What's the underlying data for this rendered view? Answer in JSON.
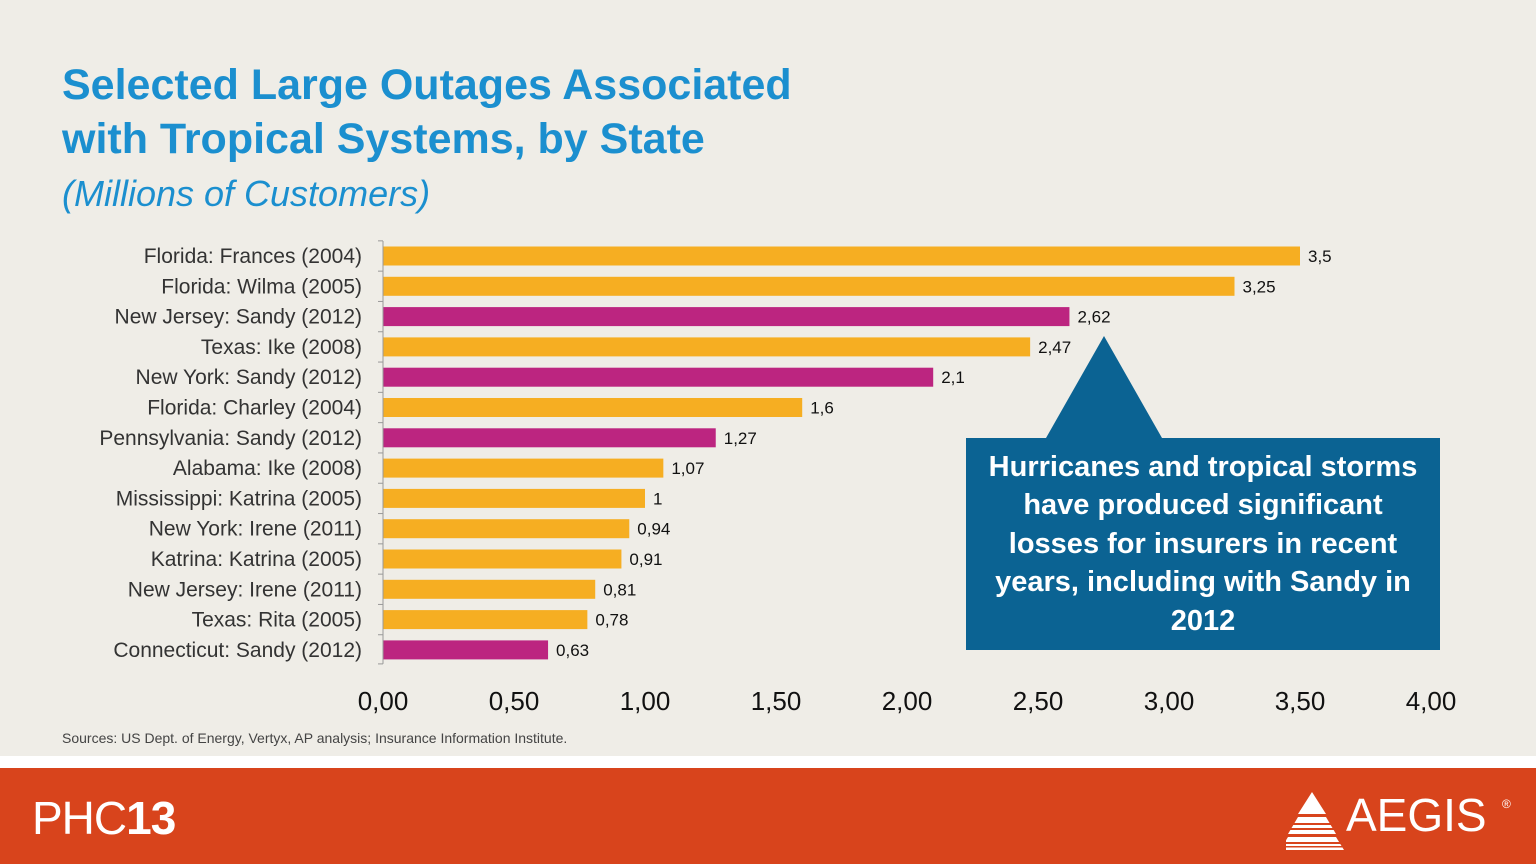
{
  "slide": {
    "title_line1": "Selected Large Outages Associated",
    "title_line2": "with Tropical Systems, by State",
    "subtitle": "(Millions of Customers)",
    "callout": "Hurricanes and tropical storms have produced significant losses for insurers in recent years, including with Sandy in 2012",
    "sources": "Sources:  US Dept. of Energy, Vertyx, AP analysis; Insurance Information Institute.",
    "footer": {
      "brand_prefix": "PHC",
      "brand_number": "13",
      "partner": "AEGIS",
      "registered_mark": "®"
    }
  },
  "colors": {
    "title": "#1b8fcf",
    "bar_default": "#f6ae22",
    "bar_sandy": "#bc2580",
    "callout_bg": "#0b6393",
    "footer_bg": "#d8441c",
    "background": "#efede7"
  },
  "chart_data": {
    "type": "bar",
    "orientation": "horizontal",
    "categories": [
      "Florida: Frances (2004)",
      "Florida: Wilma (2005)",
      "New Jersey: Sandy (2012)",
      "Texas: Ike (2008)",
      "New York: Sandy (2012)",
      "Florida: Charley (2004)",
      "Pennsylvania: Sandy (2012)",
      "Alabama: Ike (2008)",
      "Mississippi: Katrina (2005)",
      "New York: Irene (2011)",
      "Katrina: Katrina (2005)",
      "New Jersey: Irene (2011)",
      "Texas: Rita (2005)",
      "Connecticut: Sandy (2012)"
    ],
    "values": [
      3.5,
      3.25,
      2.62,
      2.47,
      2.1,
      1.6,
      1.27,
      1.07,
      1,
      0.94,
      0.91,
      0.81,
      0.78,
      0.63
    ],
    "value_labels": [
      "3,5",
      "3,25",
      "2,62",
      "2,47",
      "2,1",
      "1,6",
      "1,27",
      "1,07",
      "1",
      "0,94",
      "0,91",
      "0,81",
      "0,78",
      "0,63"
    ],
    "highlight": [
      false,
      false,
      true,
      false,
      true,
      false,
      true,
      false,
      false,
      false,
      false,
      false,
      false,
      true
    ],
    "x_ticks": [
      0,
      0.5,
      1,
      1.5,
      2,
      2.5,
      3,
      3.5,
      4
    ],
    "x_tick_labels": [
      "0,00",
      "0,50",
      "1,00",
      "1,50",
      "2,00",
      "2,50",
      "3,00",
      "3,50",
      "4,00"
    ],
    "xlim": [
      0,
      4
    ],
    "grid": false,
    "legend": "none"
  }
}
